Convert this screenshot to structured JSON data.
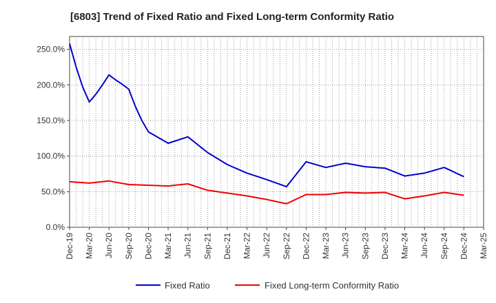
{
  "chart_data": {
    "type": "line",
    "title": "[6803]  Trend of Fixed Ratio and Fixed Long-term Conformity Ratio",
    "xlabel": "",
    "ylabel": "",
    "x_ticks": [
      "Dec-19",
      "Mar-20",
      "Jun-20",
      "Sep-20",
      "Dec-20",
      "Mar-21",
      "Jun-21",
      "Sep-21",
      "Dec-21",
      "Mar-22",
      "Jun-22",
      "Sep-22",
      "Dec-22",
      "Mar-23",
      "Jun-23",
      "Sep-23",
      "Dec-23",
      "Mar-24",
      "Jun-24",
      "Sep-24",
      "Dec-24",
      "Mar-25"
    ],
    "y_ticks": [
      "0.0%",
      "50.0%",
      "100.0%",
      "150.0%",
      "200.0%",
      "250.0%"
    ],
    "ylim": [
      0,
      268
    ],
    "grid": true,
    "legend_position": "bottom",
    "series": [
      {
        "name": "Fixed Ratio",
        "color": "#0000cc",
        "x": [
          "2019-12",
          "2020-01",
          "2020-02",
          "2020-03",
          "2020-04",
          "2020-05",
          "2020-06",
          "2020-07",
          "2020-08",
          "2020-09",
          "2020-10",
          "2020-11",
          "2020-12",
          "2021-03",
          "2021-06",
          "2021-09",
          "2021-12",
          "2022-03",
          "2022-06",
          "2022-09",
          "2022-12",
          "2023-03",
          "2023-06",
          "2023-09",
          "2023-12",
          "2024-03",
          "2024-06",
          "2024-09",
          "2024-12"
        ],
        "values": [
          258,
          225,
          197,
          176,
          187,
          200,
          214,
          207,
          201,
          194,
          170,
          150,
          134,
          118,
          127,
          105,
          88,
          76,
          67,
          57,
          92,
          84,
          90,
          85,
          83,
          72,
          76,
          84,
          71
        ]
      },
      {
        "name": "Fixed Long-term Conformity Ratio",
        "color": "#ee0000",
        "x": [
          "2019-12",
          "2020-03",
          "2020-06",
          "2020-09",
          "2020-12",
          "2021-03",
          "2021-06",
          "2021-09",
          "2021-12",
          "2022-03",
          "2022-06",
          "2022-09",
          "2022-12",
          "2023-03",
          "2023-06",
          "2023-09",
          "2023-12",
          "2024-03",
          "2024-06",
          "2024-09",
          "2024-12"
        ],
        "values": [
          64,
          62,
          65,
          60,
          59,
          58,
          61,
          52,
          48,
          44,
          39,
          33,
          46,
          46,
          49,
          48,
          49,
          40,
          44,
          49,
          45
        ]
      }
    ]
  }
}
